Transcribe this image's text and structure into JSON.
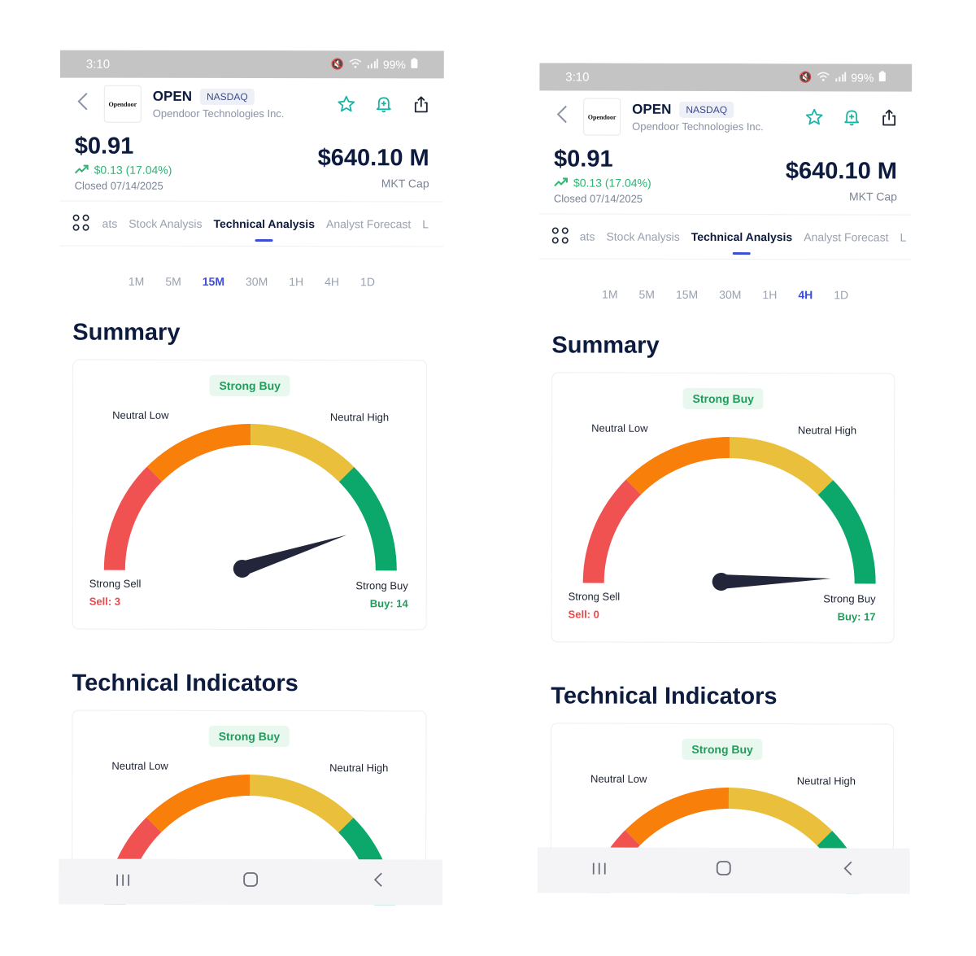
{
  "colors": {
    "sell_red": "#f05252",
    "neutral_low_orange": "#f77f0a",
    "neutral_high_yellow": "#e9bf3c",
    "buy_green": "#0ca86b",
    "needle": "#23263a",
    "accent": "#3d4dd6"
  },
  "screens": [
    {
      "status": {
        "time": "3:10",
        "battery": "99%"
      },
      "header": {
        "logo_text": "Opendoor",
        "ticker": "OPEN",
        "exchange": "NASDAQ",
        "company": "Opendoor Technologies Inc."
      },
      "quote": {
        "price": "$0.91",
        "change": "$0.13 (17.04%)",
        "closed": "Closed 07/14/2025",
        "mkt_cap": "$640.10 M",
        "mkt_cap_label": "MKT Cap"
      },
      "tabs": [
        "ats",
        "Stock Analysis",
        "Technical Analysis",
        "Analyst Forecast",
        "L"
      ],
      "active_tab": "Technical Analysis",
      "timeframes": [
        "1M",
        "5M",
        "15M",
        "30M",
        "1H",
        "4H",
        "1D"
      ],
      "active_timeframe": "15M",
      "summary": {
        "title": "Summary",
        "signal": "Strong Buy",
        "neutral_low": "Neutral Low",
        "neutral_high": "Neutral High",
        "strong_sell": "Strong Sell",
        "sell_count": "Sell: 3",
        "strong_buy": "Strong Buy",
        "buy_count": "Buy: 14",
        "needle_value": 0.9
      },
      "technical_indicators": {
        "title": "Technical Indicators",
        "signal": "Strong Buy",
        "neutral_low": "Neutral Low",
        "neutral_high": "Neutral High"
      }
    },
    {
      "status": {
        "time": "3:10",
        "battery": "99%"
      },
      "header": {
        "logo_text": "Opendoor",
        "ticker": "OPEN",
        "exchange": "NASDAQ",
        "company": "Opendoor Technologies Inc."
      },
      "quote": {
        "price": "$0.91",
        "change": "$0.13 (17.04%)",
        "closed": "Closed 07/14/2025",
        "mkt_cap": "$640.10 M",
        "mkt_cap_label": "MKT Cap"
      },
      "tabs": [
        "ats",
        "Stock Analysis",
        "Technical Analysis",
        "Analyst Forecast",
        "L"
      ],
      "active_tab": "Technical Analysis",
      "timeframes": [
        "1M",
        "5M",
        "15M",
        "30M",
        "1H",
        "4H",
        "1D"
      ],
      "active_timeframe": "4H",
      "summary": {
        "title": "Summary",
        "signal": "Strong Buy",
        "neutral_low": "Neutral Low",
        "neutral_high": "Neutral High",
        "strong_sell": "Strong Sell",
        "sell_count": "Sell: 0",
        "strong_buy": "Strong Buy",
        "buy_count": "Buy: 17",
        "needle_value": 0.99
      },
      "technical_indicators": {
        "title": "Technical Indicators",
        "signal": "Strong Buy",
        "neutral_low": "Neutral Low",
        "neutral_high": "Neutral High"
      }
    }
  ]
}
